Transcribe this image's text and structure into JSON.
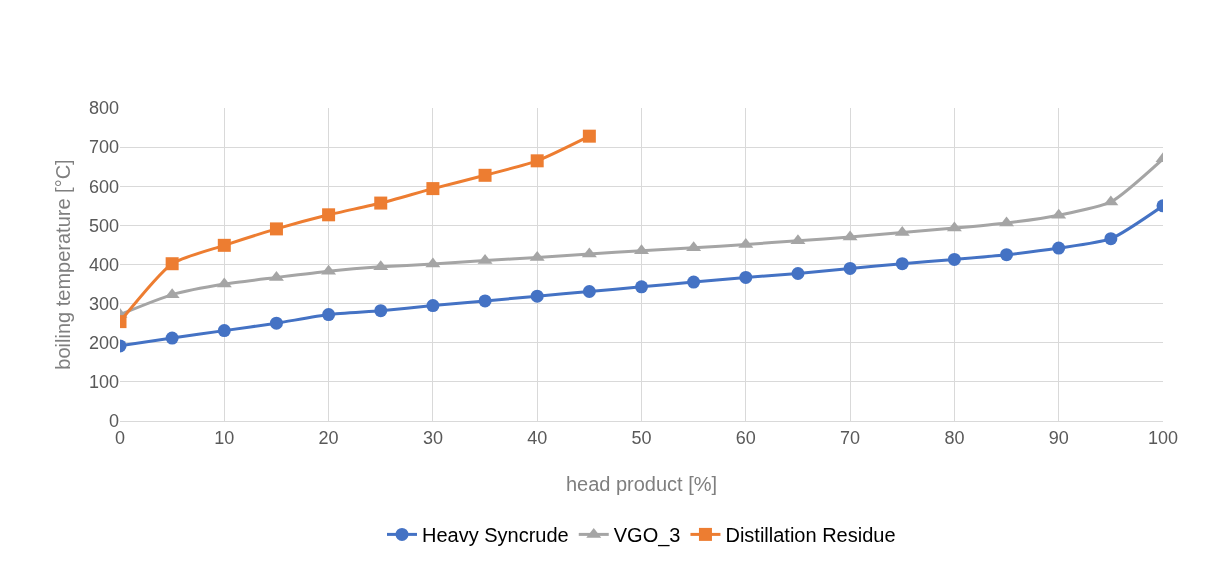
{
  "chart_data": {
    "type": "line",
    "xlabel": "head product [%]",
    "ylabel": "boiling temperature [°C]",
    "x": [
      0,
      5,
      10,
      15,
      20,
      25,
      30,
      35,
      40,
      45,
      50,
      55,
      60,
      65,
      70,
      75,
      80,
      85,
      90,
      95,
      100
    ],
    "xlim": [
      0,
      100
    ],
    "xticks": [
      0,
      10,
      20,
      30,
      40,
      50,
      60,
      70,
      80,
      90,
      100
    ],
    "ylim": [
      0,
      800
    ],
    "yticks": [
      0,
      100,
      200,
      300,
      400,
      500,
      600,
      700,
      800
    ],
    "grid": true,
    "legend": "bottom",
    "series": [
      {
        "name": "Heavy Syncrude",
        "color": "#4472c4",
        "marker": "circle",
        "values": [
          192,
          212,
          231,
          250,
          272,
          282,
          295,
          307,
          319,
          331,
          343,
          355,
          367,
          377,
          390,
          402,
          413,
          425,
          442,
          466,
          550
        ]
      },
      {
        "name": "VGO_3",
        "color": "#a5a5a5",
        "marker": "triangle",
        "values": [
          272,
          323,
          350,
          367,
          383,
          394,
          401,
          410,
          418,
          427,
          435,
          443,
          451,
          461,
          470,
          482,
          493,
          506,
          526,
          560,
          670
        ]
      },
      {
        "name": "Distillation Residue",
        "color": "#ed7d31",
        "marker": "square",
        "values": [
          254,
          402,
          449,
          491,
          527,
          557,
          594,
          628,
          665,
          728,
          null,
          null,
          null,
          null,
          null,
          null,
          null,
          null,
          null,
          null,
          null
        ]
      }
    ]
  }
}
